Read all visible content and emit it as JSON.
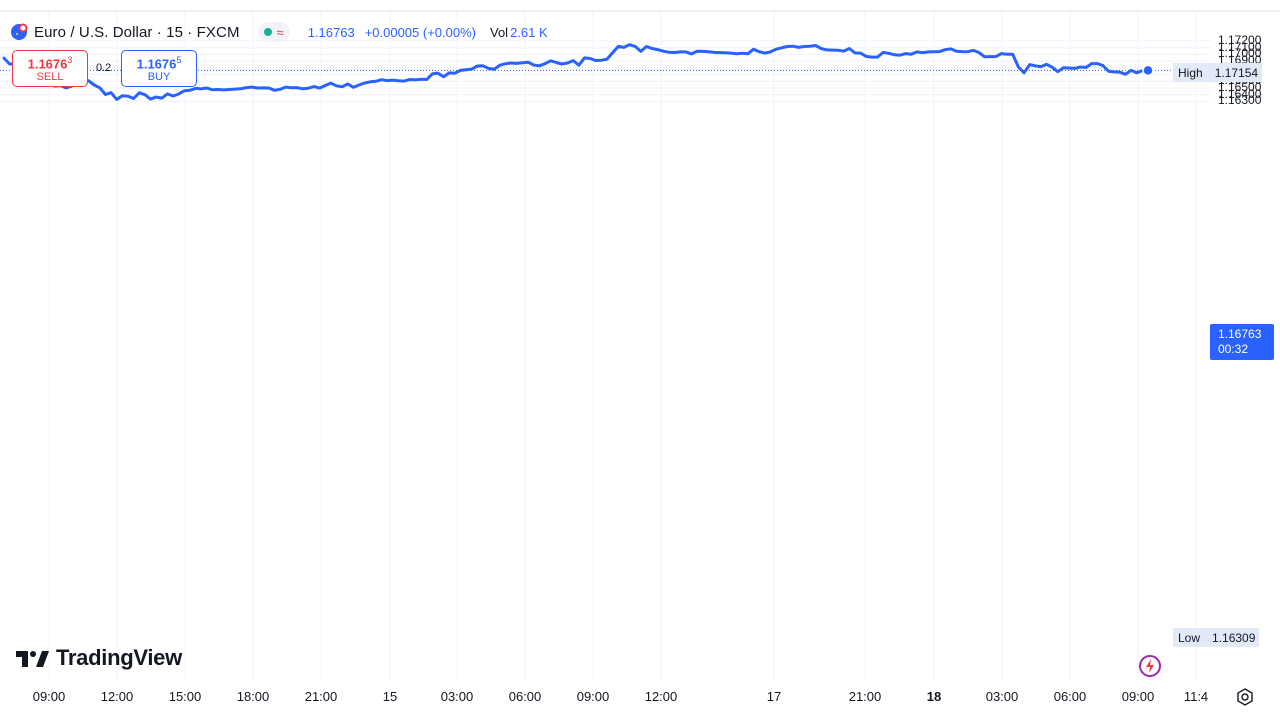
{
  "header": {
    "title": "Euro / U.S. Dollar · 15 · FXCM",
    "price": "1.16763",
    "change": "+0.00005 (+0.00%)",
    "vol_label": "Vol",
    "vol_value": "2.61 K"
  },
  "trade": {
    "sell_price_main": "1.1676",
    "sell_price_sup": "3",
    "sell_label": "SELL",
    "spread": "0.2",
    "buy_price_main": "1.1676",
    "buy_price_sup": "5",
    "buy_label": "BUY"
  },
  "price_axis": {
    "ticks": [
      "1.17200",
      "1.17100",
      "1.17000",
      "1.16900",
      "1.16800",
      "1.16700",
      "1.16600",
      "1.16500",
      "1.16400",
      "1.16300"
    ],
    "high_label": "High",
    "high_value": "1.17154",
    "low_label": "Low",
    "low_value": "1.16309",
    "current_price": "1.16763",
    "countdown": "00:32"
  },
  "time_axis": {
    "labels": [
      "09:00",
      "12:00",
      "15:00",
      "18:00",
      "21:00",
      "15",
      "03:00",
      "06:00",
      "09:00",
      "12:00",
      "17",
      "21:00",
      "18",
      "03:00",
      "06:00",
      "09:00",
      "11:4"
    ],
    "bold": [
      "18"
    ]
  },
  "branding": {
    "logo_text": "TradingView"
  },
  "colors": {
    "line": "#2962ff",
    "sell": "#f23645",
    "buy": "#2962ff",
    "grid": "#f0f3fa"
  },
  "chart_data": {
    "type": "line",
    "title": "Euro / U.S. Dollar · 15 · FXCM",
    "ylim": [
      1.1627,
      1.1728
    ],
    "y": [
      1.16945,
      1.16858,
      1.16858,
      1.16884,
      1.1688,
      1.16805,
      1.16788,
      1.16636,
      1.1664,
      1.16528,
      1.16535,
      1.16502,
      1.16527,
      1.16633,
      1.16602,
      1.16608,
      1.16545,
      1.16503,
      1.16403,
      1.1643,
      1.1633,
      1.16385,
      1.16378,
      1.16343,
      1.16428,
      1.164,
      1.16334,
      1.16364,
      1.16349,
      1.16412,
      1.1638,
      1.1641,
      1.1646,
      1.16466,
      1.16494,
      1.16486,
      1.165,
      1.16473,
      1.16478,
      1.16472,
      1.16478,
      1.16484,
      1.16488,
      1.16506,
      1.16513,
      1.165,
      1.16502,
      1.165,
      1.16466,
      1.1648,
      1.16514,
      1.16505,
      1.16506,
      1.16488,
      1.16497,
      1.1652,
      1.16498,
      1.16537,
      1.16571,
      1.16532,
      1.16517,
      1.16559,
      1.1651,
      1.16545,
      1.16575,
      1.16592,
      1.166,
      1.16624,
      1.1661,
      1.16618,
      1.16607,
      1.16603,
      1.16626,
      1.16621,
      1.1663,
      1.16626,
      1.1671,
      1.16722,
      1.16668,
      1.16725,
      1.1672,
      1.16762,
      1.16772,
      1.16782,
      1.16827,
      1.1683,
      1.1679,
      1.1678,
      1.1684,
      1.16862,
      1.16872,
      1.16867,
      1.16877,
      1.16884,
      1.16843,
      1.1683,
      1.16862,
      1.16905,
      1.1688,
      1.16858,
      1.16872,
      1.16908,
      1.1684,
      1.16948,
      1.1694,
      1.1691,
      1.16914,
      1.1693,
      1.17025,
      1.1712,
      1.17105,
      1.17145,
      1.1712,
      1.17045,
      1.17118,
      1.17088,
      1.17072,
      1.17048,
      1.17032,
      1.17028,
      1.17038,
      1.17038,
      1.17008,
      1.17048,
      1.17045,
      1.1704,
      1.1703,
      1.17027,
      1.17025,
      1.1702,
      1.1701,
      1.17018,
      1.1701,
      1.1708,
      1.1704,
      1.1702,
      1.17037,
      1.17078,
      1.17098,
      1.17118,
      1.17122,
      1.17104,
      1.17118,
      1.17122,
      1.17133,
      1.17088,
      1.17068,
      1.17065,
      1.17063,
      1.17048,
      1.17088,
      1.17022,
      1.1702,
      1.1697,
      1.1696,
      1.1696,
      1.1703,
      1.17017,
      1.16995,
      1.16988,
      1.17012,
      1.17002,
      1.17037,
      1.17025,
      1.17037,
      1.1704,
      1.17042,
      1.1707,
      1.17083,
      1.17048,
      1.17042,
      1.1704,
      1.1706,
      1.17028,
      1.16965,
      1.16967,
      1.16967,
      1.17012,
      1.17003,
      1.17002,
      1.16812,
      1.16727,
      1.16848,
      1.1683,
      1.16818,
      1.16853,
      1.1681,
      1.16742,
      1.16802,
      1.16798,
      1.16792,
      1.16813,
      1.16805,
      1.16863,
      1.16863,
      1.16834,
      1.16748,
      1.1674,
      1.16736,
      1.16704,
      1.16762,
      1.16727,
      1.16757,
      1.16763
    ]
  }
}
